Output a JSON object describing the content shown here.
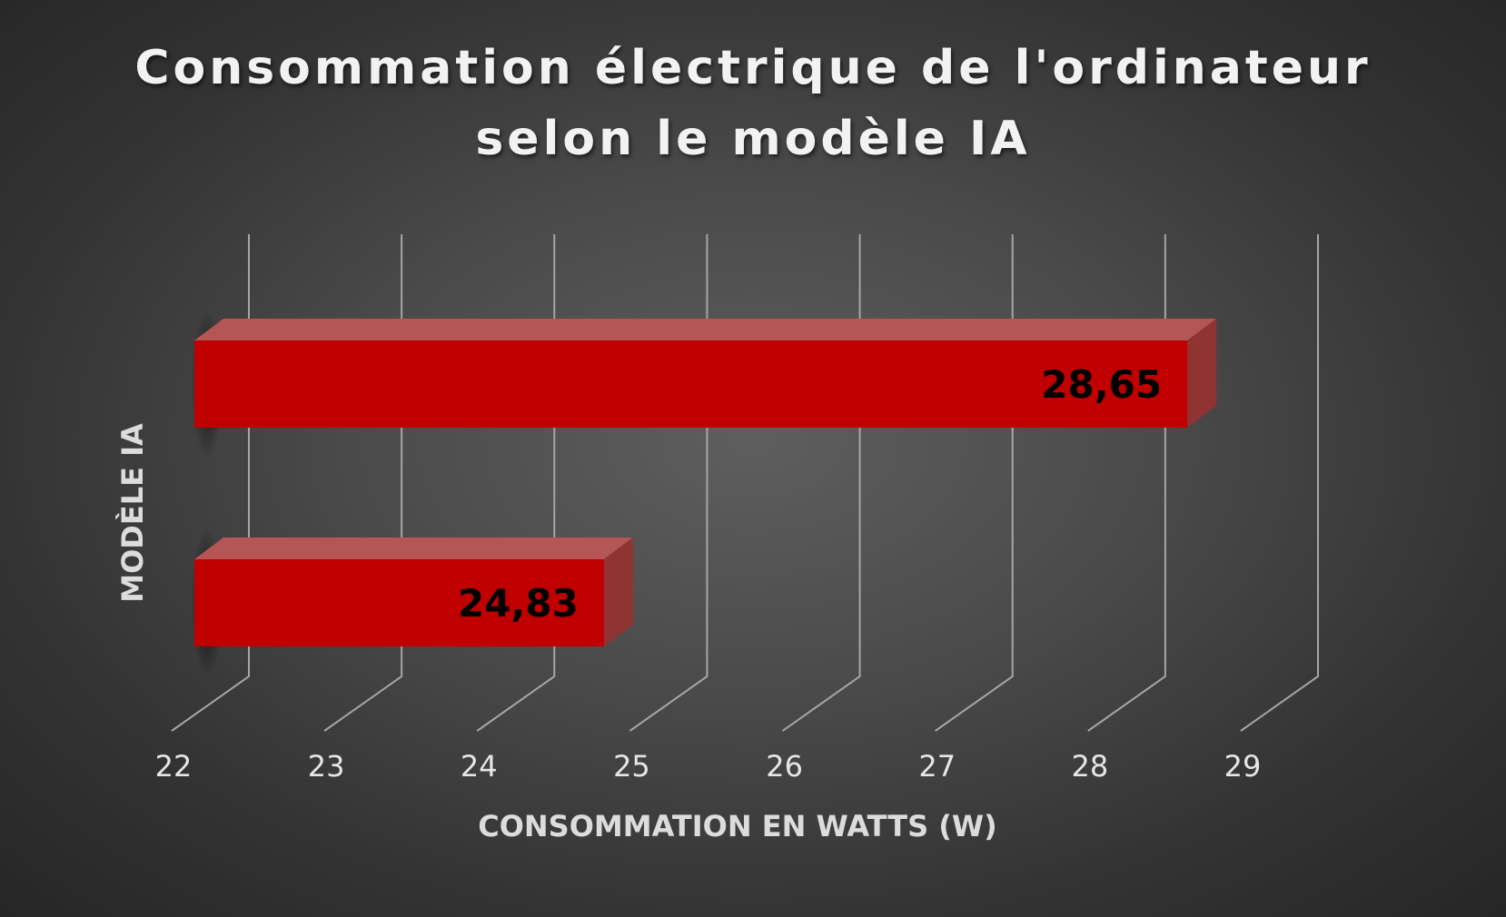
{
  "chart_data": {
    "type": "bar",
    "orientation": "horizontal",
    "style": "3d",
    "title_lines": [
      "Consommation électrique de l'ordinateur",
      "selon le modèle IA"
    ],
    "xlabel": "CONSOMMATION EN WATTS (W)",
    "ylabel": "MODÈLE IA",
    "xlim": [
      22,
      29
    ],
    "xticks": [
      "22",
      "23",
      "24",
      "25",
      "26",
      "27",
      "28",
      "29"
    ],
    "categories": [
      "",
      ""
    ],
    "series": [
      {
        "values": [
          28.65,
          24.83
        ],
        "labels": [
          "28,65",
          "24,83"
        ],
        "color": "#c00000"
      }
    ],
    "grid": true,
    "legend": "none",
    "background": "#4a4a4a"
  }
}
